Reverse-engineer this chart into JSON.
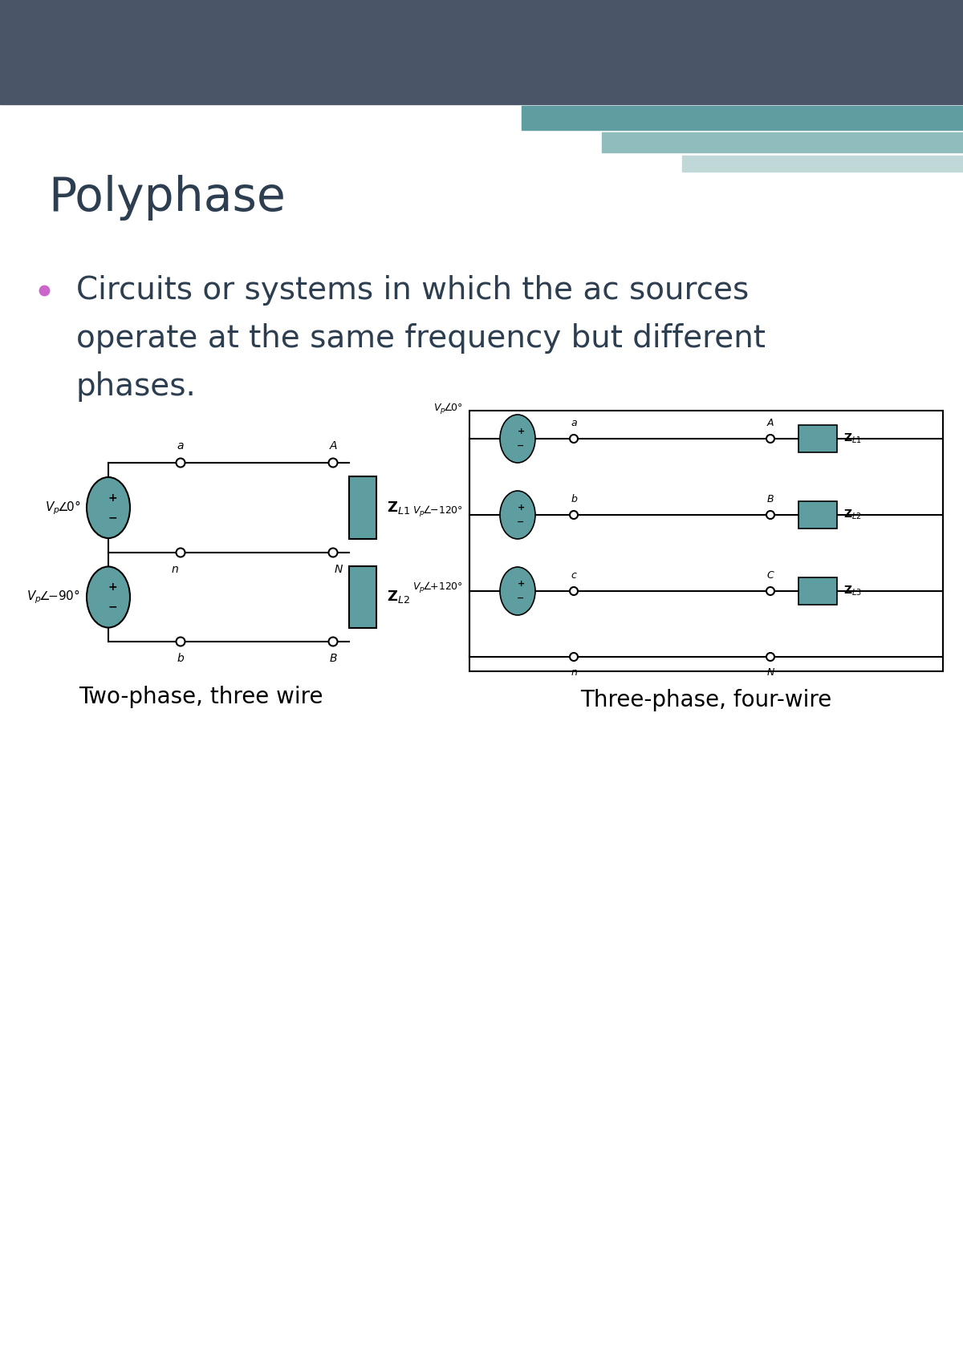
{
  "title": "Polyphase",
  "bullet_text_line1": "Circuits or systems in which the ac sources",
  "bullet_text_line2": "operate at the same frequency but different",
  "bullet_text_line3": "phases.",
  "header_bar_color": "#4a5568",
  "teal_accent_color": "#5f9ea0",
  "teal_accent2_color": "#8fbcbc",
  "teal_accent3_color": "#c0d8d8",
  "bullet_color": "#cc66cc",
  "circuit_line_color": "#000000",
  "source_fill_color": "#5f9ea0",
  "load_fill_color": "#5f9ea0",
  "caption1": "Two-phase, three wire",
  "caption2": "Three-phase, four-wire",
  "bg_color": "#ffffff",
  "text_color": "#2c3e50",
  "title_color": "#2c3e50",
  "title_fontsize": 42,
  "body_fontsize": 28,
  "caption_fontsize": 20
}
